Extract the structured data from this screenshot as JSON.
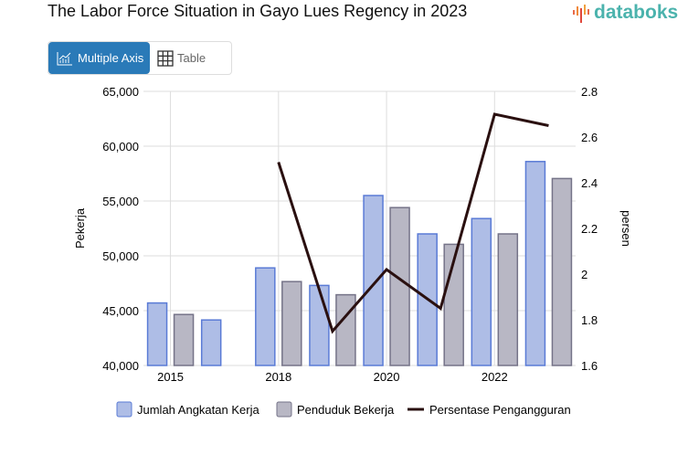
{
  "title": "The Labor Force Situation in Gayo Lues Regency in 2023",
  "logo": "databoks",
  "view_toggle": {
    "multiple_axis": "Multiple Axis",
    "table": "Table",
    "active": "multiple_axis"
  },
  "colors": {
    "blue_fill": "#aebde6",
    "blue_stroke": "#5a7bd6",
    "grey_fill": "#b8b7c4",
    "grey_stroke": "#757388",
    "line": "#2a1010",
    "accent": "#2a7ab8"
  },
  "chart_data": {
    "type": "bar+line",
    "categories": [
      "2015",
      "",
      "2018",
      "",
      "2020",
      "",
      "2022",
      ""
    ],
    "x_tick_labels": [
      "2015",
      "2018",
      "2020",
      "2022"
    ],
    "y_left": {
      "label": "Pekerja",
      "range": [
        40000,
        65000
      ],
      "ticks": [
        "40,000",
        "45,000",
        "50,000",
        "55,000",
        "60,000",
        "65,000"
      ]
    },
    "y_right": {
      "label": "persen",
      "range": [
        1.6,
        2.8
      ],
      "ticks": [
        "1.6",
        "1.8",
        "2",
        "2.2",
        "2.4",
        "2.6",
        "2.8"
      ]
    },
    "series": [
      {
        "name": "Jumlah Angkatan Kerja",
        "type": "bar",
        "axis": "left",
        "values": [
          45700,
          44150,
          48900,
          47300,
          55500,
          52000,
          53400,
          58600
        ]
      },
      {
        "name": "Penduduk Bekerja",
        "type": "bar",
        "axis": "left",
        "values": [
          44650,
          null,
          47650,
          46450,
          54400,
          51050,
          52000,
          57050
        ]
      },
      {
        "name": "Persentase Pengangguran",
        "type": "line",
        "axis": "right",
        "values": [
          null,
          null,
          2.49,
          1.75,
          2.02,
          1.85,
          2.7,
          2.65
        ]
      }
    ],
    "legend_position": "bottom",
    "grid": true
  }
}
